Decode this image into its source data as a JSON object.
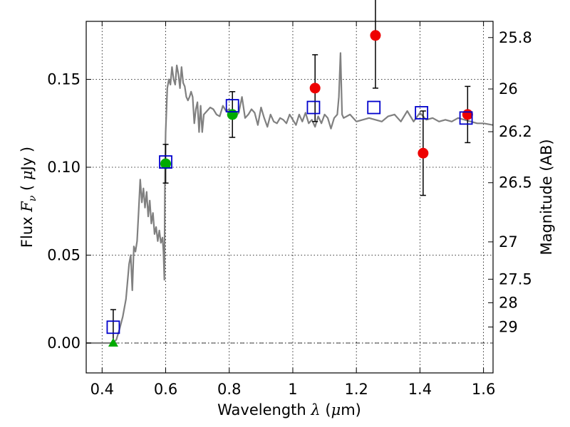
{
  "chart_data": {
    "type": "scatter",
    "xlabel_parts": [
      "Wavelength ",
      "λ",
      " (",
      "μ",
      "m)"
    ],
    "ylabel_parts": [
      "Flux ",
      "F",
      "ν",
      " ( ",
      "μ",
      "Jy )"
    ],
    "y2label": "Magnitude (AB)",
    "xlim": [
      0.35,
      1.63
    ],
    "ylim": [
      -0.017,
      0.183
    ],
    "xticks": [
      0.4,
      0.6,
      0.8,
      1.0,
      1.2,
      1.4,
      1.6
    ],
    "xtick_labels": [
      "0.4",
      "0.6",
      "0.8",
      "1",
      "1.2",
      "1.4",
      "1.6"
    ],
    "yticks": [
      0.0,
      0.05,
      0.1,
      0.15
    ],
    "ytick_labels": [
      "0.00",
      "0.05",
      "0.10",
      "0.15"
    ],
    "y2ticks": [
      25.8,
      26,
      26.2,
      26.5,
      27,
      27.5,
      28,
      29
    ],
    "y2tick_labels": [
      "25.8",
      "26",
      "26.2",
      "26.5",
      "27",
      "27.5",
      "28",
      "29"
    ],
    "grid": true,
    "zero_line": true,
    "colors": {
      "model": "#808080",
      "model_photometry": "#0000cc",
      "green_detections": "#00aa00",
      "red_detections": "#ee0000",
      "error_bars": "#000000"
    },
    "series": [
      {
        "kind": "line",
        "x": [
          0.35,
          0.42,
          0.435,
          0.445,
          0.455,
          0.465,
          0.475,
          0.48,
          0.485,
          0.49,
          0.495,
          0.5,
          0.505,
          0.51,
          0.515,
          0.52,
          0.525,
          0.53,
          0.535,
          0.54,
          0.545,
          0.55,
          0.555,
          0.56,
          0.565,
          0.57,
          0.575,
          0.58,
          0.585,
          0.59,
          0.593,
          0.596,
          0.598,
          0.6,
          0.605,
          0.61,
          0.615,
          0.62,
          0.625,
          0.63,
          0.635,
          0.64,
          0.645,
          0.65,
          0.655,
          0.66,
          0.665,
          0.67,
          0.675,
          0.68,
          0.685,
          0.69,
          0.695,
          0.7,
          0.705,
          0.71,
          0.715,
          0.72,
          0.73,
          0.74,
          0.75,
          0.76,
          0.77,
          0.78,
          0.79,
          0.8,
          0.81,
          0.82,
          0.83,
          0.84,
          0.85,
          0.86,
          0.87,
          0.88,
          0.89,
          0.9,
          0.91,
          0.92,
          0.93,
          0.94,
          0.95,
          0.96,
          0.97,
          0.98,
          0.99,
          1.0,
          1.01,
          1.02,
          1.03,
          1.04,
          1.05,
          1.06,
          1.07,
          1.08,
          1.09,
          1.1,
          1.11,
          1.12,
          1.13,
          1.14,
          1.145,
          1.15,
          1.155,
          1.16,
          1.18,
          1.2,
          1.22,
          1.24,
          1.26,
          1.28,
          1.3,
          1.32,
          1.34,
          1.36,
          1.38,
          1.4,
          1.42,
          1.44,
          1.46,
          1.48,
          1.5,
          1.52,
          1.54,
          1.56,
          1.58,
          1.6,
          1.63
        ],
        "y": [
          0.0,
          0.0,
          0.0,
          0.002,
          0.008,
          0.015,
          0.025,
          0.035,
          0.045,
          0.05,
          0.03,
          0.055,
          0.052,
          0.058,
          0.075,
          0.093,
          0.08,
          0.088,
          0.077,
          0.086,
          0.072,
          0.081,
          0.068,
          0.074,
          0.062,
          0.066,
          0.058,
          0.064,
          0.057,
          0.06,
          0.052,
          0.036,
          0.1,
          0.12,
          0.145,
          0.15,
          0.147,
          0.157,
          0.15,
          0.147,
          0.158,
          0.153,
          0.145,
          0.157,
          0.148,
          0.146,
          0.14,
          0.138,
          0.14,
          0.143,
          0.14,
          0.125,
          0.133,
          0.137,
          0.12,
          0.135,
          0.12,
          0.13,
          0.132,
          0.134,
          0.133,
          0.13,
          0.129,
          0.135,
          0.132,
          0.133,
          0.131,
          0.129,
          0.131,
          0.14,
          0.128,
          0.13,
          0.133,
          0.131,
          0.124,
          0.134,
          0.128,
          0.123,
          0.13,
          0.126,
          0.125,
          0.128,
          0.127,
          0.125,
          0.13,
          0.127,
          0.124,
          0.13,
          0.126,
          0.131,
          0.125,
          0.127,
          0.123,
          0.129,
          0.125,
          0.13,
          0.128,
          0.122,
          0.128,
          0.13,
          0.14,
          0.165,
          0.13,
          0.128,
          0.13,
          0.126,
          0.127,
          0.128,
          0.127,
          0.126,
          0.129,
          0.13,
          0.126,
          0.132,
          0.126,
          0.131,
          0.127,
          0.128,
          0.126,
          0.127,
          0.126,
          0.128,
          0.127,
          0.126,
          0.125,
          0.125,
          0.124
        ]
      },
      {
        "kind": "squares",
        "x": [
          0.435,
          0.6,
          0.81,
          1.065,
          1.255,
          1.405,
          1.545
        ],
        "y": [
          0.009,
          0.103,
          0.135,
          0.134,
          0.134,
          0.131,
          0.128
        ]
      },
      {
        "kind": "circles",
        "x": [
          0.6,
          0.81
        ],
        "y": [
          0.102,
          0.13
        ],
        "err": [
          0.011,
          0.013
        ]
      },
      {
        "kind": "triangles",
        "x": [
          0.435
        ],
        "y": [
          0.0
        ],
        "upper_err": [
          0.019
        ]
      },
      {
        "kind": "circles",
        "x": [
          1.07,
          1.26,
          1.41,
          1.55
        ],
        "y": [
          0.145,
          0.175,
          0.108,
          0.13
        ],
        "err": [
          0.019,
          0.03,
          0.024,
          0.016
        ]
      }
    ]
  }
}
